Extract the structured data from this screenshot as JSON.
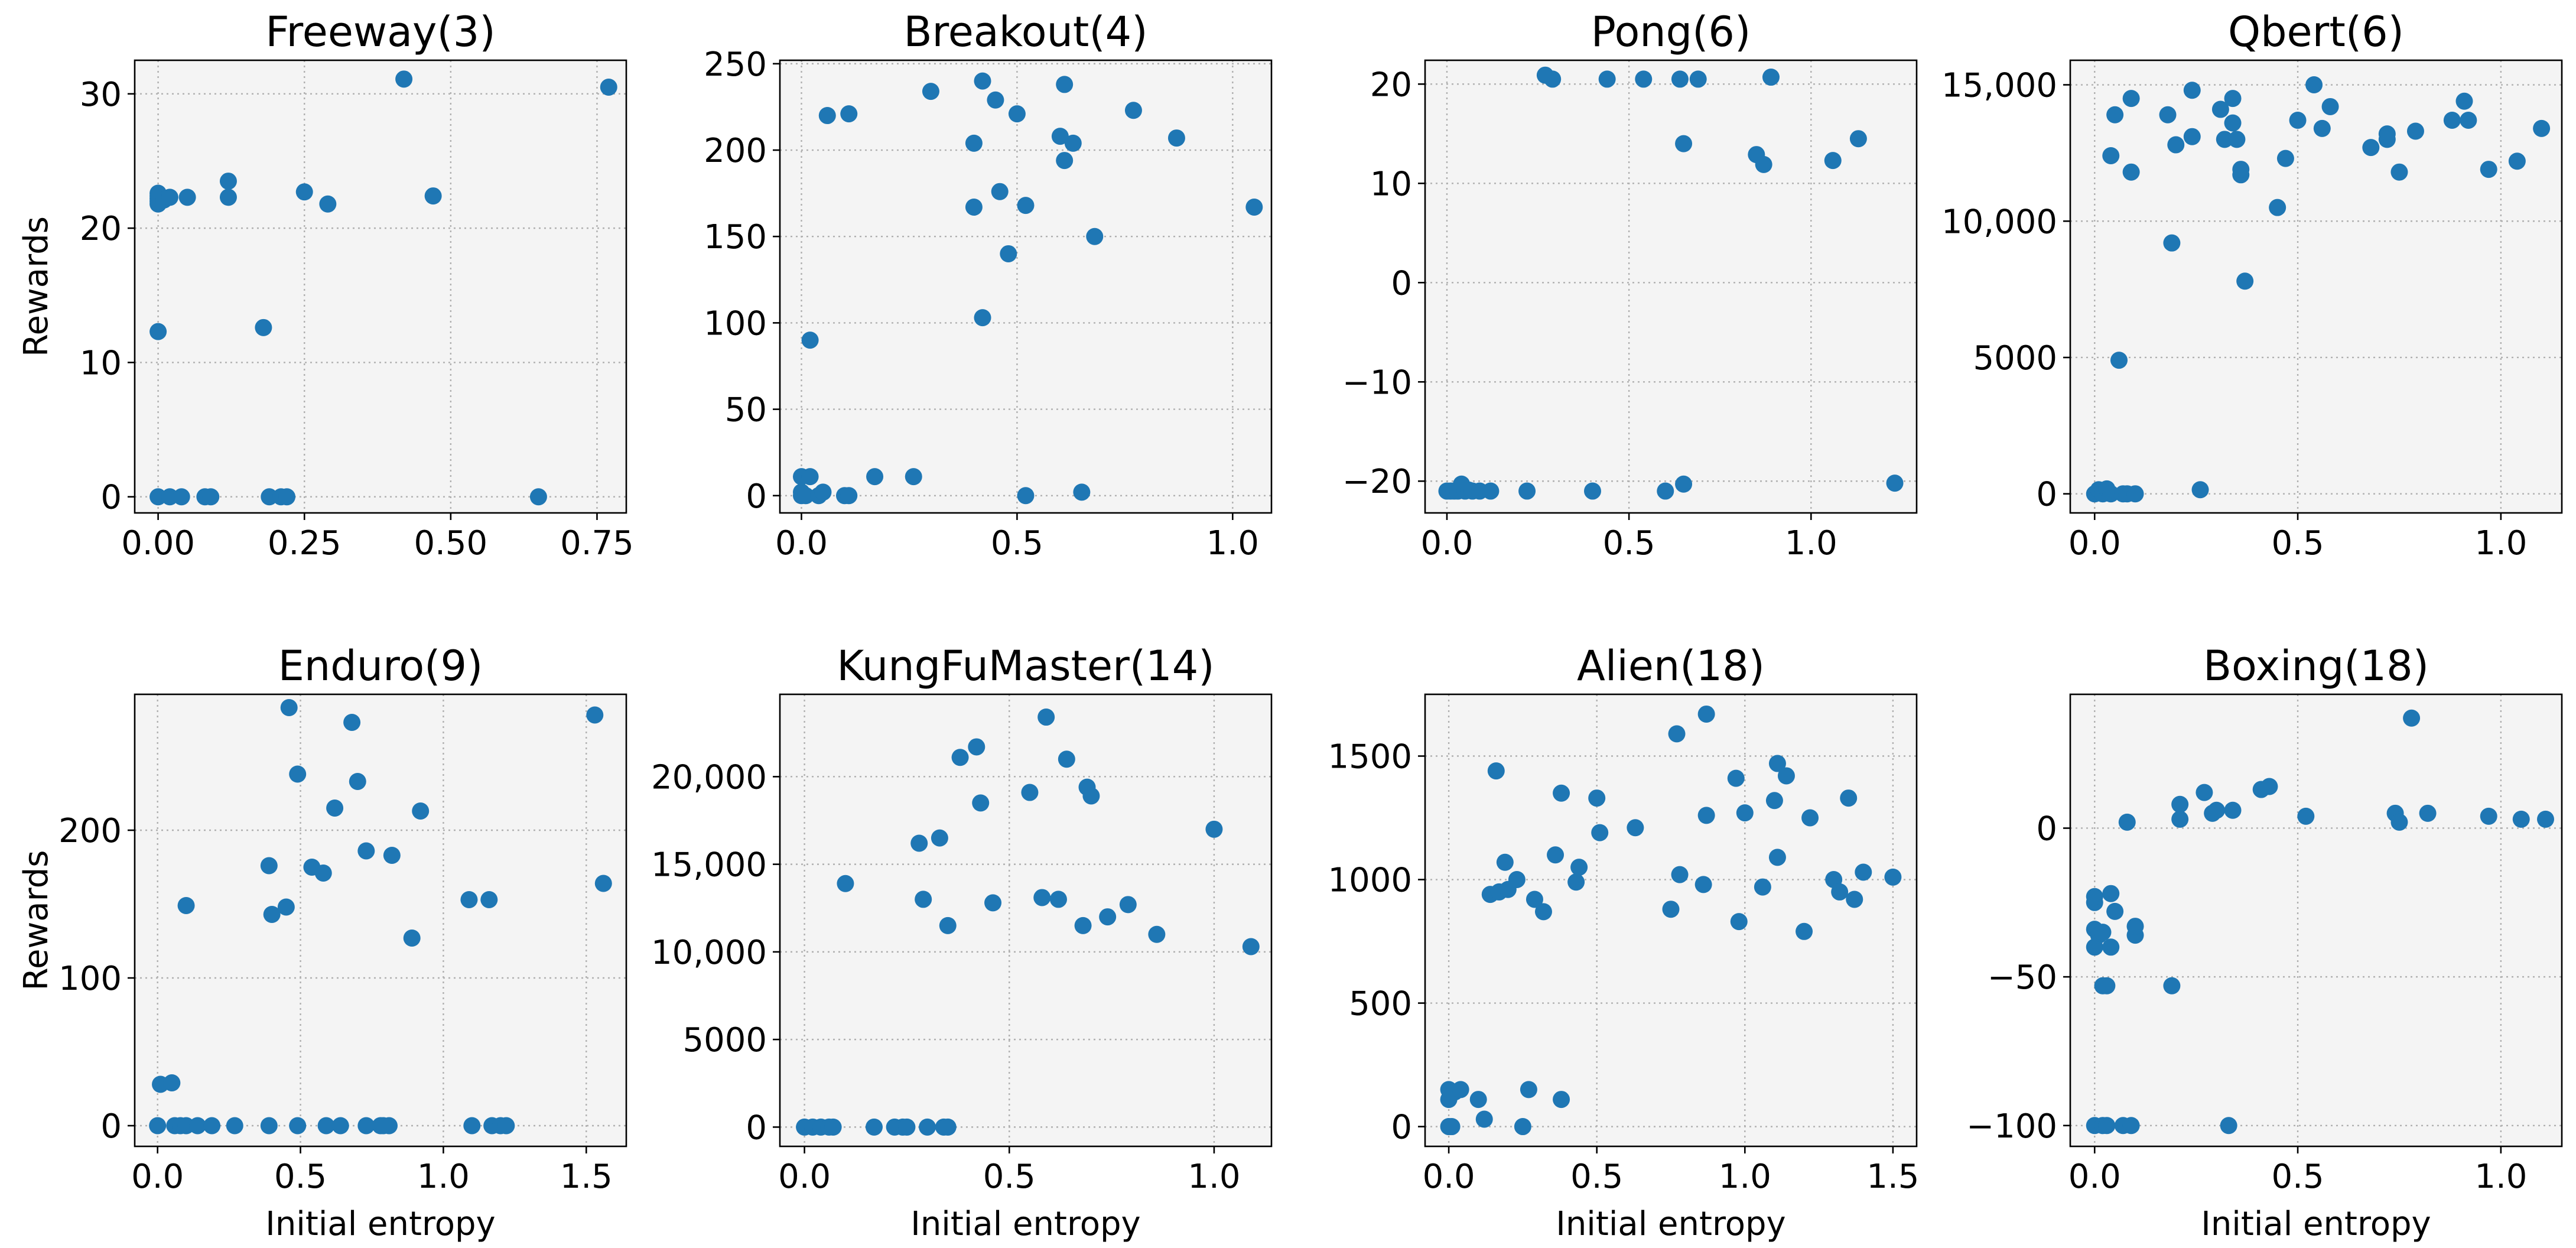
{
  "chart_data": [
    {
      "type": "scatter",
      "title": "Freeway(3)",
      "xlabel": "",
      "ylabel": "Rewards",
      "xlim": [
        -0.04,
        0.8
      ],
      "ylim": [
        -1.2,
        32.5
      ],
      "xticks": [
        0.0,
        0.25,
        0.5,
        0.75
      ],
      "xtick_labels": [
        "0.00",
        "0.25",
        "0.50",
        "0.75"
      ],
      "yticks": [
        0,
        10,
        20,
        30
      ],
      "ytick_labels": [
        "0",
        "10",
        "20",
        "30"
      ],
      "grid": true,
      "color": "#1f77b4",
      "points": [
        [
          0.0,
          21.8
        ],
        [
          0.0,
          22.0
        ],
        [
          0.0,
          22.2
        ],
        [
          0.0,
          22.4
        ],
        [
          0.0,
          22.6
        ],
        [
          0.0,
          12.3
        ],
        [
          0.0,
          0
        ],
        [
          0.01,
          22.1
        ],
        [
          0.02,
          0
        ],
        [
          0.02,
          22.3
        ],
        [
          0.04,
          0
        ],
        [
          0.05,
          22.3
        ],
        [
          0.08,
          0
        ],
        [
          0.09,
          0
        ],
        [
          0.12,
          23.5
        ],
        [
          0.12,
          22.3
        ],
        [
          0.18,
          12.6
        ],
        [
          0.19,
          0
        ],
        [
          0.21,
          0
        ],
        [
          0.22,
          0
        ],
        [
          0.25,
          22.7
        ],
        [
          0.29,
          21.8
        ],
        [
          0.42,
          31.1
        ],
        [
          0.47,
          22.4
        ],
        [
          0.65,
          0
        ],
        [
          0.77,
          30.5
        ]
      ]
    },
    {
      "type": "scatter",
      "title": "Breakout(4)",
      "xlabel": "",
      "ylabel": "",
      "xlim": [
        -0.05,
        1.09
      ],
      "ylim": [
        -10,
        252
      ],
      "xticks": [
        0.0,
        0.5,
        1.0
      ],
      "xtick_labels": [
        "0.0",
        "0.5",
        "1.0"
      ],
      "yticks": [
        0,
        50,
        100,
        150,
        200,
        250
      ],
      "ytick_labels": [
        "0",
        "50",
        "100",
        "150",
        "200",
        "250"
      ],
      "grid": true,
      "color": "#1f77b4",
      "points": [
        [
          0.0,
          11
        ],
        [
          0.0,
          2
        ],
        [
          0.0,
          0
        ],
        [
          0.01,
          0
        ],
        [
          0.02,
          11
        ],
        [
          0.02,
          90
        ],
        [
          0.04,
          0
        ],
        [
          0.05,
          2
        ],
        [
          0.06,
          220
        ],
        [
          0.1,
          0
        ],
        [
          0.11,
          0
        ],
        [
          0.11,
          221
        ],
        [
          0.17,
          11
        ],
        [
          0.26,
          11
        ],
        [
          0.3,
          234
        ],
        [
          0.4,
          167
        ],
        [
          0.4,
          204
        ],
        [
          0.42,
          103
        ],
        [
          0.42,
          240
        ],
        [
          0.45,
          229
        ],
        [
          0.46,
          176
        ],
        [
          0.48,
          140
        ],
        [
          0.5,
          221
        ],
        [
          0.52,
          168
        ],
        [
          0.52,
          0
        ],
        [
          0.6,
          208
        ],
        [
          0.61,
          194
        ],
        [
          0.61,
          238
        ],
        [
          0.63,
          204
        ],
        [
          0.65,
          2
        ],
        [
          0.68,
          150
        ],
        [
          0.77,
          223
        ],
        [
          0.87,
          207
        ],
        [
          1.05,
          167
        ]
      ]
    },
    {
      "type": "scatter",
      "title": "Pong(6)",
      "xlabel": "",
      "ylabel": "",
      "xlim": [
        -0.06,
        1.29
      ],
      "ylim": [
        -23.2,
        22.4
      ],
      "xticks": [
        0.0,
        0.5,
        1.0
      ],
      "xtick_labels": [
        "0.0",
        "0.5",
        "1.0"
      ],
      "yticks": [
        -20,
        -10,
        0,
        10,
        20
      ],
      "ytick_labels": [
        "−20",
        "−10",
        "0",
        "10",
        "20"
      ],
      "grid": true,
      "color": "#1f77b4",
      "points": [
        [
          0.0,
          -21
        ],
        [
          0.01,
          -21
        ],
        [
          0.02,
          -21
        ],
        [
          0.03,
          -20.9
        ],
        [
          0.03,
          -21
        ],
        [
          0.04,
          -20.3
        ],
        [
          0.05,
          -21
        ],
        [
          0.06,
          -20.9
        ],
        [
          0.07,
          -21
        ],
        [
          0.09,
          -21
        ],
        [
          0.12,
          -21
        ],
        [
          0.22,
          -21
        ],
        [
          0.27,
          20.9
        ],
        [
          0.29,
          20.5
        ],
        [
          0.4,
          -21
        ],
        [
          0.44,
          20.5
        ],
        [
          0.54,
          20.5
        ],
        [
          0.6,
          -21
        ],
        [
          0.64,
          20.5
        ],
        [
          0.65,
          14
        ],
        [
          0.65,
          -20.3
        ],
        [
          0.69,
          20.5
        ],
        [
          0.85,
          12.9
        ],
        [
          0.87,
          11.9
        ],
        [
          0.89,
          20.7
        ],
        [
          1.06,
          12.3
        ],
        [
          1.13,
          14.5
        ],
        [
          1.23,
          -20.2
        ]
      ]
    },
    {
      "type": "scatter",
      "title": "Qbert(6)",
      "xlabel": "",
      "ylabel": "",
      "xlim": [
        -0.06,
        1.15
      ],
      "ylim": [
        -700,
        15900
      ],
      "xticks": [
        0.0,
        0.5,
        1.0
      ],
      "xtick_labels": [
        "0.0",
        "0.5",
        "1.0"
      ],
      "yticks": [
        0,
        5000,
        10000,
        15000
      ],
      "ytick_labels": [
        "0",
        "5000",
        "10,000",
        "15,000"
      ],
      "grid": true,
      "color": "#1f77b4",
      "points": [
        [
          0.0,
          0
        ],
        [
          0.01,
          150
        ],
        [
          0.02,
          0
        ],
        [
          0.03,
          180
        ],
        [
          0.04,
          0
        ],
        [
          0.04,
          12400
        ],
        [
          0.05,
          13900
        ],
        [
          0.06,
          4900
        ],
        [
          0.07,
          0
        ],
        [
          0.08,
          0
        ],
        [
          0.09,
          11800
        ],
        [
          0.09,
          14500
        ],
        [
          0.1,
          0
        ],
        [
          0.18,
          13900
        ],
        [
          0.19,
          9200
        ],
        [
          0.2,
          12800
        ],
        [
          0.24,
          14800
        ],
        [
          0.24,
          13100
        ],
        [
          0.26,
          150
        ],
        [
          0.31,
          14100
        ],
        [
          0.32,
          13000
        ],
        [
          0.34,
          13600
        ],
        [
          0.34,
          14500
        ],
        [
          0.35,
          13000
        ],
        [
          0.36,
          11700
        ],
        [
          0.36,
          11900
        ],
        [
          0.37,
          7800
        ],
        [
          0.45,
          10500
        ],
        [
          0.47,
          12300
        ],
        [
          0.5,
          13700
        ],
        [
          0.54,
          15000
        ],
        [
          0.56,
          13400
        ],
        [
          0.58,
          14200
        ],
        [
          0.68,
          12700
        ],
        [
          0.72,
          13000
        ],
        [
          0.72,
          13200
        ],
        [
          0.75,
          11800
        ],
        [
          0.79,
          13300
        ],
        [
          0.88,
          13700
        ],
        [
          0.91,
          14400
        ],
        [
          0.92,
          13700
        ],
        [
          0.97,
          11900
        ],
        [
          1.04,
          12200
        ],
        [
          1.1,
          13400
        ]
      ]
    },
    {
      "type": "scatter",
      "title": "Enduro(9)",
      "xlabel": "Initial entropy",
      "ylabel": "Rewards",
      "xlim": [
        -0.08,
        1.64
      ],
      "ylim": [
        -14,
        292
      ],
      "xticks": [
        0.0,
        0.5,
        1.0,
        1.5
      ],
      "xtick_labels": [
        "0.0",
        "0.5",
        "1.0",
        "1.5"
      ],
      "yticks": [
        0,
        100,
        200
      ],
      "ytick_labels": [
        "0",
        "100",
        "200"
      ],
      "grid": true,
      "color": "#1f77b4",
      "points": [
        [
          0.0,
          0
        ],
        [
          0.01,
          28
        ],
        [
          0.05,
          29
        ],
        [
          0.06,
          0
        ],
        [
          0.08,
          0
        ],
        [
          0.1,
          0
        ],
        [
          0.1,
          149
        ],
        [
          0.14,
          0
        ],
        [
          0.19,
          0
        ],
        [
          0.27,
          0
        ],
        [
          0.39,
          0
        ],
        [
          0.39,
          176
        ],
        [
          0.4,
          143
        ],
        [
          0.45,
          148
        ],
        [
          0.46,
          283
        ],
        [
          0.49,
          0
        ],
        [
          0.49,
          238
        ],
        [
          0.54,
          175
        ],
        [
          0.58,
          171
        ],
        [
          0.59,
          0
        ],
        [
          0.62,
          215
        ],
        [
          0.64,
          0
        ],
        [
          0.68,
          273
        ],
        [
          0.7,
          233
        ],
        [
          0.73,
          0
        ],
        [
          0.73,
          186
        ],
        [
          0.78,
          0
        ],
        [
          0.79,
          0
        ],
        [
          0.81,
          0
        ],
        [
          0.82,
          183
        ],
        [
          0.89,
          127
        ],
        [
          0.92,
          213
        ],
        [
          1.09,
          153
        ],
        [
          1.1,
          0
        ],
        [
          1.16,
          153
        ],
        [
          1.17,
          0
        ],
        [
          1.2,
          0
        ],
        [
          1.22,
          0
        ],
        [
          1.53,
          278
        ],
        [
          1.56,
          164
        ]
      ]
    },
    {
      "type": "scatter",
      "title": "KungFuMaster(14)",
      "xlabel": "Initial entropy",
      "ylabel": "",
      "xlim": [
        -0.06,
        1.14
      ],
      "ylim": [
        -1100,
        24700
      ],
      "xticks": [
        0.0,
        0.5,
        1.0
      ],
      "xtick_labels": [
        "0.0",
        "0.5",
        "1.0"
      ],
      "yticks": [
        0,
        5000,
        10000,
        15000,
        20000
      ],
      "ytick_labels": [
        "0",
        "5000",
        "10,000",
        "15,000",
        "20,000"
      ],
      "grid": true,
      "color": "#1f77b4",
      "points": [
        [
          0.0,
          0
        ],
        [
          0.02,
          0
        ],
        [
          0.04,
          0
        ],
        [
          0.06,
          0
        ],
        [
          0.07,
          0
        ],
        [
          0.1,
          13900
        ],
        [
          0.17,
          0
        ],
        [
          0.22,
          0
        ],
        [
          0.24,
          0
        ],
        [
          0.25,
          0
        ],
        [
          0.28,
          16200
        ],
        [
          0.29,
          13000
        ],
        [
          0.3,
          0
        ],
        [
          0.33,
          16500
        ],
        [
          0.34,
          0
        ],
        [
          0.35,
          11500
        ],
        [
          0.35,
          0
        ],
        [
          0.38,
          21100
        ],
        [
          0.42,
          21700
        ],
        [
          0.43,
          18500
        ],
        [
          0.46,
          12800
        ],
        [
          0.55,
          19100
        ],
        [
          0.58,
          13100
        ],
        [
          0.59,
          23400
        ],
        [
          0.62,
          13000
        ],
        [
          0.64,
          21000
        ],
        [
          0.68,
          11500
        ],
        [
          0.69,
          19400
        ],
        [
          0.7,
          18900
        ],
        [
          0.74,
          12000
        ],
        [
          0.79,
          12700
        ],
        [
          0.86,
          11000
        ],
        [
          1.0,
          17000
        ],
        [
          1.09,
          10300
        ]
      ]
    },
    {
      "type": "scatter",
      "title": "Alien(18)",
      "xlabel": "Initial entropy",
      "ylabel": "",
      "xlim": [
        -0.08,
        1.58
      ],
      "ylim": [
        -80,
        1750
      ],
      "xticks": [
        0.0,
        0.5,
        1.0,
        1.5
      ],
      "xtick_labels": [
        "0.0",
        "0.5",
        "1.0",
        "1.5"
      ],
      "yticks": [
        0,
        500,
        1000,
        1500
      ],
      "ytick_labels": [
        "0",
        "500",
        "1000",
        "1500"
      ],
      "grid": true,
      "color": "#1f77b4",
      "points": [
        [
          0.0,
          0
        ],
        [
          0.0,
          110
        ],
        [
          0.0,
          150
        ],
        [
          0.01,
          0
        ],
        [
          0.02,
          140
        ],
        [
          0.04,
          150
        ],
        [
          0.1,
          110
        ],
        [
          0.12,
          30
        ],
        [
          0.14,
          940
        ],
        [
          0.16,
          1440
        ],
        [
          0.17,
          950
        ],
        [
          0.19,
          1070
        ],
        [
          0.2,
          960
        ],
        [
          0.23,
          1000
        ],
        [
          0.25,
          0
        ],
        [
          0.27,
          150
        ],
        [
          0.29,
          920
        ],
        [
          0.32,
          870
        ],
        [
          0.36,
          1100
        ],
        [
          0.38,
          1350
        ],
        [
          0.38,
          110
        ],
        [
          0.43,
          990
        ],
        [
          0.44,
          1050
        ],
        [
          0.5,
          1330
        ],
        [
          0.51,
          1190
        ],
        [
          0.63,
          1210
        ],
        [
          0.75,
          880
        ],
        [
          0.77,
          1590
        ],
        [
          0.78,
          1020
        ],
        [
          0.86,
          980
        ],
        [
          0.87,
          1670
        ],
        [
          0.87,
          1260
        ],
        [
          0.97,
          1410
        ],
        [
          0.98,
          830
        ],
        [
          1.0,
          1270
        ],
        [
          1.06,
          970
        ],
        [
          1.1,
          1320
        ],
        [
          1.11,
          1470
        ],
        [
          1.11,
          1090
        ],
        [
          1.14,
          1420
        ],
        [
          1.2,
          790
        ],
        [
          1.22,
          1250
        ],
        [
          1.3,
          1000
        ],
        [
          1.32,
          950
        ],
        [
          1.35,
          1330
        ],
        [
          1.37,
          920
        ],
        [
          1.4,
          1030
        ],
        [
          1.5,
          1010
        ]
      ]
    },
    {
      "type": "scatter",
      "title": "Boxing(18)",
      "xlabel": "Initial entropy",
      "ylabel": "",
      "xlim": [
        -0.06,
        1.15
      ],
      "ylim": [
        -107,
        45
      ],
      "xticks": [
        0.0,
        0.5,
        1.0
      ],
      "xtick_labels": [
        "0.0",
        "0.5",
        "1.0"
      ],
      "yticks": [
        -100,
        -50,
        0
      ],
      "ytick_labels": [
        "−100",
        "−50",
        "0"
      ],
      "grid": true,
      "color": "#1f77b4",
      "points": [
        [
          0.0,
          -100
        ],
        [
          0.0,
          -40
        ],
        [
          0.0,
          -34
        ],
        [
          0.0,
          -25
        ],
        [
          0.0,
          -23
        ],
        [
          0.01,
          -36
        ],
        [
          0.02,
          -53
        ],
        [
          0.02,
          -35
        ],
        [
          0.02,
          -100
        ],
        [
          0.03,
          -53
        ],
        [
          0.03,
          -100
        ],
        [
          0.04,
          -40
        ],
        [
          0.04,
          -22
        ],
        [
          0.05,
          -28
        ],
        [
          0.07,
          -100
        ],
        [
          0.08,
          2
        ],
        [
          0.09,
          -100
        ],
        [
          0.1,
          -36
        ],
        [
          0.1,
          -33
        ],
        [
          0.19,
          -53
        ],
        [
          0.21,
          8
        ],
        [
          0.21,
          3
        ],
        [
          0.27,
          12
        ],
        [
          0.29,
          5
        ],
        [
          0.3,
          6
        ],
        [
          0.33,
          -100
        ],
        [
          0.34,
          6
        ],
        [
          0.41,
          13
        ],
        [
          0.43,
          14
        ],
        [
          0.52,
          4
        ],
        [
          0.74,
          5
        ],
        [
          0.75,
          2
        ],
        [
          0.78,
          37
        ],
        [
          0.82,
          5
        ],
        [
          0.97,
          4
        ],
        [
          1.05,
          3
        ],
        [
          1.11,
          3
        ]
      ]
    }
  ]
}
